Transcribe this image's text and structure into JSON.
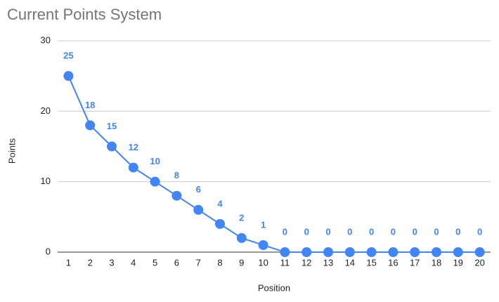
{
  "chart_data": {
    "type": "line",
    "title": "Current Points System",
    "x_label": "Position",
    "y_label": "Points",
    "x": [
      1,
      2,
      3,
      4,
      5,
      6,
      7,
      8,
      9,
      10,
      11,
      12,
      13,
      14,
      15,
      16,
      17,
      18,
      19,
      20
    ],
    "values": [
      25,
      18,
      15,
      12,
      10,
      8,
      6,
      4,
      2,
      1,
      0,
      0,
      0,
      0,
      0,
      0,
      0,
      0,
      0,
      0
    ],
    "color": "#4285f4",
    "xlim": [
      0.5,
      20.5
    ],
    "xticks": [
      1,
      2,
      3,
      4,
      5,
      6,
      7,
      8,
      9,
      10,
      11,
      12,
      13,
      14,
      15,
      16,
      17,
      18,
      19,
      20
    ],
    "ylim": [
      0,
      30
    ],
    "yticks": [
      0,
      10,
      20,
      30
    ],
    "grid": true,
    "data_labels": true
  }
}
